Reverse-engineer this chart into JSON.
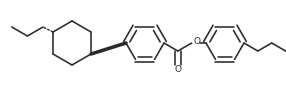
{
  "bg_color": "#ffffff",
  "line_color": "#2a2a2a",
  "lw": 1.15,
  "fig_width": 2.86,
  "fig_height": 0.96,
  "dpi": 100
}
